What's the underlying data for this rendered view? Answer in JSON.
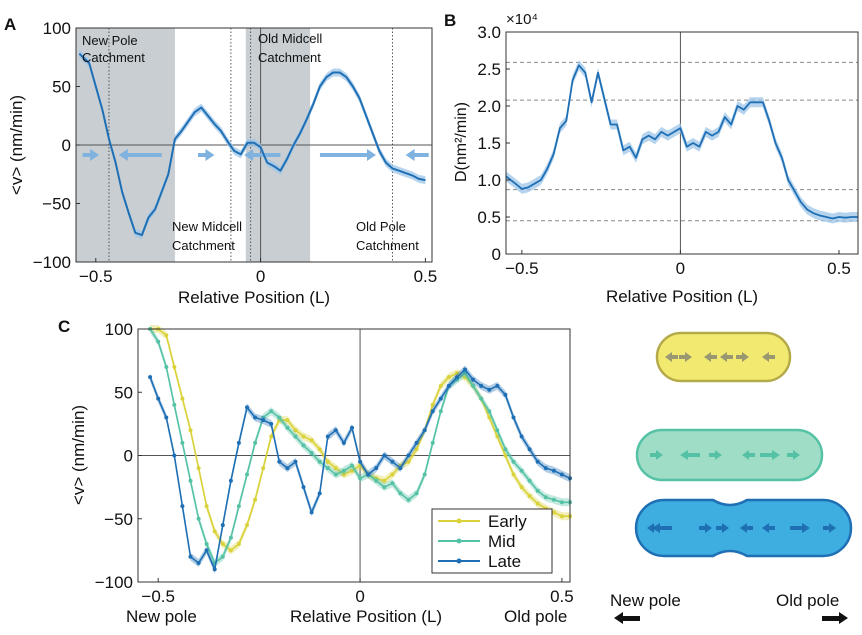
{
  "panels": {
    "A": "A",
    "B": "B",
    "C": "C"
  },
  "colors": {
    "main": "#1f6fb5",
    "band": "#9ec5e8",
    "shade": "#c8ced2",
    "arrow": "#7fb2de",
    "early": "#d9d23a",
    "mid": "#55c2a6",
    "late": "#1f6fb5"
  },
  "chart_data": [
    {
      "panel": "A",
      "type": "line",
      "xlabel": "Relative Position (L)",
      "ylabel": "<v> (nm/min)",
      "xlim": [
        -0.56,
        0.52
      ],
      "ylim": [
        -100,
        100
      ],
      "xticks": [
        {
          "v": -0.5,
          "t": "−0.5"
        },
        {
          "v": 0,
          "t": "0"
        },
        {
          "v": 0.5,
          "t": "0.5"
        }
      ],
      "yticks": [
        {
          "v": 100,
          "t": "100"
        },
        {
          "v": 50,
          "t": "50"
        },
        {
          "v": 0,
          "t": "0"
        },
        {
          "v": -50,
          "t": "−50"
        },
        {
          "v": -100,
          "t": "−100"
        }
      ],
      "shaded_regions": [
        [
          -0.56,
          -0.26
        ],
        [
          -0.045,
          -0.025
        ],
        [
          -0.025,
          0.15
        ]
      ],
      "dotted_lines": [
        -0.46,
        -0.09,
        -0.03,
        0.4
      ],
      "annotations": [
        "New Pole",
        "Catchment",
        "New Midcell",
        "Catchment",
        "Old Midcell",
        "Catchment",
        "Old Pole",
        "Catchment"
      ],
      "arrows": [
        {
          "x1": -0.54,
          "x2": -0.49
        },
        {
          "x1": -0.3,
          "x2": -0.43
        },
        {
          "x1": -0.19,
          "x2": -0.14
        },
        {
          "x1": 0.06,
          "x2": -0.05
        },
        {
          "x1": 0.18,
          "x2": 0.35
        },
        {
          "x1": 0.51,
          "x2": 0.44
        }
      ],
      "series": [
        {
          "x": [
            -0.55,
            -0.52,
            -0.5,
            -0.48,
            -0.46,
            -0.44,
            -0.42,
            -0.4,
            -0.38,
            -0.36,
            -0.34,
            -0.32,
            -0.3,
            -0.28,
            -0.26,
            -0.24,
            -0.22,
            -0.2,
            -0.18,
            -0.16,
            -0.14,
            -0.12,
            -0.1,
            -0.08,
            -0.06,
            -0.04,
            -0.02,
            0.0,
            0.02,
            0.04,
            0.06,
            0.08,
            0.1,
            0.12,
            0.14,
            0.16,
            0.18,
            0.2,
            0.22,
            0.24,
            0.26,
            0.28,
            0.3,
            0.32,
            0.34,
            0.36,
            0.38,
            0.4,
            0.42,
            0.44,
            0.46,
            0.48,
            0.5
          ],
          "y": [
            78,
            70,
            50,
            30,
            5,
            -15,
            -40,
            -58,
            -75,
            -77,
            -62,
            -55,
            -40,
            -25,
            5,
            12,
            20,
            28,
            32,
            25,
            18,
            12,
            3,
            -5,
            -8,
            2,
            2,
            -2,
            -15,
            -18,
            -22,
            -12,
            0,
            10,
            22,
            35,
            50,
            58,
            62,
            62,
            58,
            50,
            40,
            25,
            10,
            -5,
            -15,
            -20,
            -22,
            -24,
            -26,
            -29,
            -30
          ]
        }
      ]
    },
    {
      "panel": "B",
      "type": "line",
      "xlabel": "Relative Position (L)",
      "ylabel": "D(nm²/min)",
      "multiplier": "×10⁴",
      "xlim": [
        -0.55,
        0.56
      ],
      "ylim": [
        0,
        3.0
      ],
      "xticks": [
        {
          "v": -0.5,
          "t": "−0.5"
        },
        {
          "v": 0,
          "t": "0"
        },
        {
          "v": 0.5,
          "t": "0.5"
        }
      ],
      "yticks": [
        {
          "v": 3.0,
          "t": "3.0"
        },
        {
          "v": 2.5,
          "t": "2.5"
        },
        {
          "v": 2.0,
          "t": "2.0"
        },
        {
          "v": 1.5,
          "t": "1.5"
        },
        {
          "v": 1.0,
          "t": "1.0"
        },
        {
          "v": 0.5,
          "t": "0.5"
        },
        {
          "v": 0,
          "t": "0"
        }
      ],
      "dashed_lines": [
        2.59,
        2.08,
        0.87,
        0.45
      ],
      "series": [
        {
          "x": [
            -0.55,
            -0.52,
            -0.5,
            -0.48,
            -0.46,
            -0.44,
            -0.42,
            -0.4,
            -0.38,
            -0.36,
            -0.34,
            -0.32,
            -0.3,
            -0.28,
            -0.26,
            -0.24,
            -0.22,
            -0.2,
            -0.18,
            -0.16,
            -0.14,
            -0.12,
            -0.1,
            -0.08,
            -0.06,
            -0.04,
            -0.02,
            0.0,
            0.02,
            0.04,
            0.06,
            0.08,
            0.1,
            0.12,
            0.14,
            0.16,
            0.18,
            0.2,
            0.22,
            0.24,
            0.26,
            0.28,
            0.3,
            0.32,
            0.34,
            0.36,
            0.38,
            0.4,
            0.42,
            0.44,
            0.46,
            0.48,
            0.5,
            0.52,
            0.54,
            0.56
          ],
          "y": [
            1.05,
            0.95,
            0.88,
            0.9,
            0.95,
            1.0,
            1.15,
            1.35,
            1.7,
            1.8,
            2.35,
            2.55,
            2.45,
            2.05,
            2.45,
            2.1,
            1.75,
            1.75,
            1.4,
            1.45,
            1.3,
            1.55,
            1.6,
            1.55,
            1.65,
            1.6,
            1.65,
            1.7,
            1.45,
            1.5,
            1.45,
            1.65,
            1.6,
            1.65,
            1.85,
            1.75,
            2.0,
            1.95,
            2.05,
            2.05,
            2.05,
            1.8,
            1.5,
            1.3,
            1.0,
            0.85,
            0.7,
            0.6,
            0.55,
            0.52,
            0.5,
            0.48,
            0.5,
            0.49,
            0.5,
            0.5
          ]
        }
      ]
    },
    {
      "panel": "C",
      "type": "line",
      "xlabel": "Relative Position (L)",
      "ylabel": "<v> (nm/min)",
      "xlim": [
        -0.55,
        0.52
      ],
      "ylim": [
        -100,
        100
      ],
      "xticks": [
        {
          "v": -0.5,
          "t": "−0.5"
        },
        {
          "v": 0,
          "t": "0"
        },
        {
          "v": 0.5,
          "t": "0.5"
        }
      ],
      "yticks": [
        {
          "v": 100,
          "t": "100"
        },
        {
          "v": 50,
          "t": "50"
        },
        {
          "v": 0,
          "t": "0"
        },
        {
          "v": -50,
          "t": "−50"
        },
        {
          "v": -100,
          "t": "−100"
        }
      ],
      "end_labels": [
        "New pole",
        "Old pole"
      ],
      "series": [
        {
          "name": "Early",
          "color": "#d9d23a",
          "x": [
            -0.52,
            -0.5,
            -0.48,
            -0.46,
            -0.44,
            -0.42,
            -0.4,
            -0.38,
            -0.36,
            -0.34,
            -0.32,
            -0.3,
            -0.28,
            -0.26,
            -0.24,
            -0.22,
            -0.2,
            -0.18,
            -0.16,
            -0.14,
            -0.12,
            -0.1,
            -0.08,
            -0.06,
            -0.04,
            -0.02,
            0.0,
            0.02,
            0.04,
            0.06,
            0.08,
            0.1,
            0.12,
            0.14,
            0.16,
            0.18,
            0.2,
            0.22,
            0.24,
            0.26,
            0.28,
            0.3,
            0.32,
            0.34,
            0.36,
            0.38,
            0.4,
            0.42,
            0.44,
            0.46,
            0.48,
            0.5,
            0.52
          ],
          "y": [
            100,
            100,
            95,
            70,
            45,
            20,
            -10,
            -40,
            -60,
            -70,
            -75,
            -70,
            -55,
            -35,
            -10,
            15,
            28,
            28,
            20,
            15,
            12,
            5,
            -5,
            -10,
            -15,
            -12,
            -8,
            -15,
            -18,
            -20,
            -15,
            -8,
            -5,
            5,
            20,
            40,
            55,
            62,
            65,
            62,
            55,
            45,
            30,
            15,
            0,
            -15,
            -25,
            -32,
            -38,
            -42,
            -45,
            -48,
            -48
          ]
        },
        {
          "name": "Mid",
          "color": "#55c2a6",
          "x": [
            -0.52,
            -0.5,
            -0.48,
            -0.46,
            -0.44,
            -0.42,
            -0.4,
            -0.38,
            -0.36,
            -0.34,
            -0.32,
            -0.3,
            -0.28,
            -0.26,
            -0.24,
            -0.22,
            -0.2,
            -0.18,
            -0.16,
            -0.14,
            -0.12,
            -0.1,
            -0.08,
            -0.06,
            -0.04,
            -0.02,
            0.0,
            0.02,
            0.04,
            0.06,
            0.08,
            0.1,
            0.12,
            0.14,
            0.16,
            0.18,
            0.2,
            0.22,
            0.24,
            0.26,
            0.28,
            0.3,
            0.32,
            0.34,
            0.36,
            0.38,
            0.4,
            0.42,
            0.44,
            0.46,
            0.48,
            0.5,
            0.52
          ],
          "y": [
            100,
            90,
            70,
            40,
            10,
            -20,
            -50,
            -70,
            -85,
            -80,
            -65,
            -40,
            -15,
            10,
            30,
            35,
            30,
            22,
            15,
            8,
            2,
            -5,
            -10,
            -15,
            -12,
            -8,
            -18,
            -15,
            -20,
            -25,
            -22,
            -30,
            -35,
            -30,
            -15,
            10,
            35,
            55,
            60,
            65,
            55,
            45,
            35,
            20,
            5,
            -5,
            -12,
            -20,
            -28,
            -33,
            -35,
            -37,
            -37
          ]
        },
        {
          "name": "Late",
          "color": "#1f6fb5",
          "x": [
            -0.52,
            -0.5,
            -0.48,
            -0.46,
            -0.44,
            -0.42,
            -0.4,
            -0.38,
            -0.36,
            -0.34,
            -0.32,
            -0.3,
            -0.28,
            -0.26,
            -0.24,
            -0.22,
            -0.2,
            -0.18,
            -0.16,
            -0.14,
            -0.12,
            -0.1,
            -0.08,
            -0.06,
            -0.04,
            -0.02,
            0.0,
            0.02,
            0.04,
            0.06,
            0.08,
            0.1,
            0.12,
            0.14,
            0.16,
            0.18,
            0.2,
            0.22,
            0.24,
            0.26,
            0.28,
            0.3,
            0.32,
            0.34,
            0.36,
            0.38,
            0.4,
            0.42,
            0.44,
            0.46,
            0.48,
            0.5,
            0.52
          ],
          "y": [
            62,
            45,
            30,
            0,
            -40,
            -80,
            -85,
            -75,
            -90,
            -55,
            -20,
            10,
            38,
            30,
            28,
            25,
            -5,
            -10,
            -5,
            -25,
            -45,
            -30,
            15,
            20,
            10,
            22,
            -5,
            -15,
            -10,
            0,
            -5,
            -10,
            0,
            10,
            20,
            35,
            45,
            55,
            62,
            68,
            60,
            55,
            52,
            55,
            48,
            30,
            15,
            5,
            -5,
            -10,
            -12,
            -15,
            -18
          ]
        }
      ]
    }
  ],
  "schematic": {
    "new_pole": "New pole",
    "old_pole": "Old pole"
  }
}
